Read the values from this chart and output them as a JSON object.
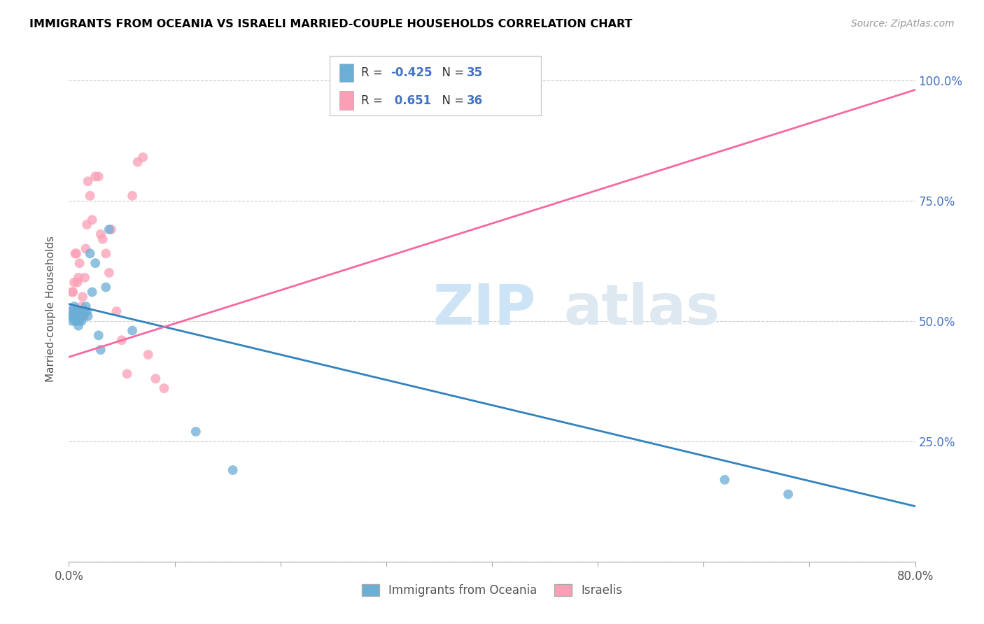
{
  "title": "IMMIGRANTS FROM OCEANIA VS ISRAELI MARRIED-COUPLE HOUSEHOLDS CORRELATION CHART",
  "source": "Source: ZipAtlas.com",
  "ylabel": "Married-couple Households",
  "xmin": 0.0,
  "xmax": 0.8,
  "ymin": 0.0,
  "ymax": 1.05,
  "xticks": [
    0.0,
    0.1,
    0.2,
    0.3,
    0.4,
    0.5,
    0.6,
    0.7,
    0.8
  ],
  "xticklabels": [
    "0.0%",
    "",
    "",
    "",
    "",
    "",
    "",
    "",
    "80.0%"
  ],
  "yticks": [
    0.0,
    0.25,
    0.5,
    0.75,
    1.0
  ],
  "yticklabels_right": [
    "",
    "25.0%",
    "50.0%",
    "75.0%",
    "100.0%"
  ],
  "color_blue": "#6baed6",
  "color_pink": "#fa9fb5",
  "trendline_blue_color": "#3182bd",
  "trendline_pink_color": "#f768a1",
  "watermark_zip": "ZIP",
  "watermark_atlas": "atlas",
  "legend_label_1": "Immigrants from Oceania",
  "legend_label_2": "Israelis",
  "blue_scatter_x": [
    0.001,
    0.002,
    0.003,
    0.004,
    0.005,
    0.005,
    0.006,
    0.007,
    0.007,
    0.008,
    0.008,
    0.009,
    0.009,
    0.01,
    0.01,
    0.011,
    0.012,
    0.013,
    0.014,
    0.015,
    0.016,
    0.017,
    0.018,
    0.02,
    0.022,
    0.025,
    0.028,
    0.03,
    0.035,
    0.038,
    0.06,
    0.12,
    0.155,
    0.62,
    0.68
  ],
  "blue_scatter_y": [
    0.52,
    0.51,
    0.5,
    0.51,
    0.53,
    0.52,
    0.5,
    0.52,
    0.5,
    0.51,
    0.51,
    0.52,
    0.49,
    0.5,
    0.52,
    0.51,
    0.5,
    0.52,
    0.51,
    0.52,
    0.53,
    0.52,
    0.51,
    0.64,
    0.56,
    0.62,
    0.47,
    0.44,
    0.57,
    0.69,
    0.48,
    0.27,
    0.19,
    0.17,
    0.14
  ],
  "pink_scatter_x": [
    0.001,
    0.002,
    0.003,
    0.004,
    0.005,
    0.006,
    0.007,
    0.008,
    0.009,
    0.01,
    0.011,
    0.012,
    0.013,
    0.014,
    0.015,
    0.016,
    0.017,
    0.018,
    0.02,
    0.022,
    0.025,
    0.028,
    0.03,
    0.032,
    0.035,
    0.038,
    0.04,
    0.045,
    0.05,
    0.055,
    0.06,
    0.065,
    0.07,
    0.075,
    0.082,
    0.09
  ],
  "pink_scatter_y": [
    0.51,
    0.52,
    0.56,
    0.56,
    0.58,
    0.64,
    0.64,
    0.58,
    0.59,
    0.62,
    0.51,
    0.53,
    0.55,
    0.51,
    0.59,
    0.65,
    0.7,
    0.79,
    0.76,
    0.71,
    0.8,
    0.8,
    0.68,
    0.67,
    0.64,
    0.6,
    0.69,
    0.52,
    0.46,
    0.39,
    0.76,
    0.83,
    0.84,
    0.43,
    0.38,
    0.36
  ],
  "blue_trend_x": [
    0.0,
    0.8
  ],
  "blue_trend_y": [
    0.535,
    0.115
  ],
  "pink_trend_x": [
    0.0,
    0.8
  ],
  "pink_trend_y": [
    0.425,
    0.98
  ]
}
